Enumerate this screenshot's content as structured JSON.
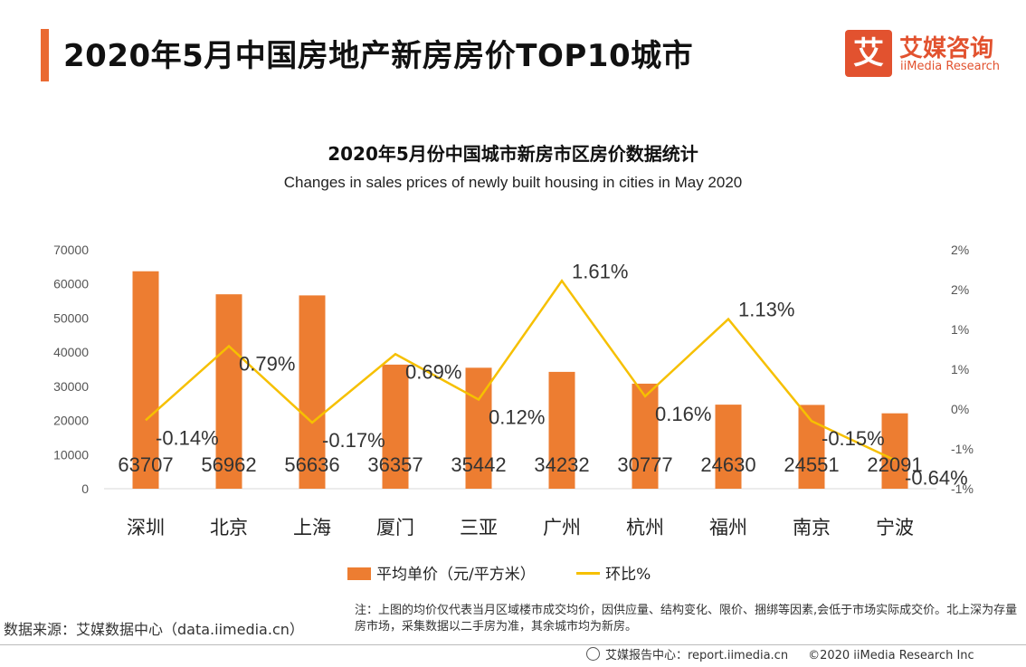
{
  "header": {
    "title": "2020年5月中国房地产新房房价TOP10城市",
    "logo_glyph": "艾",
    "logo_cn": "艾媒咨询",
    "logo_en": "iiMedia Research"
  },
  "chart_data": {
    "type": "bar",
    "title": "2020年5月份中国城市新房市区房价数据统计",
    "subtitle": "Changes in sales prices of newly built housing in cities in May 2020",
    "categories": [
      "深圳",
      "北京",
      "上海",
      "厦门",
      "三亚",
      "广州",
      "杭州",
      "福州",
      "南京",
      "宁波"
    ],
    "series": [
      {
        "name": "平均单价（元/平方米）",
        "type": "bar",
        "axis": "left",
        "color": "#ed7d31",
        "values": [
          63707,
          56962,
          56636,
          36357,
          35442,
          34232,
          30777,
          24630,
          24551,
          22091
        ],
        "labels": [
          "63707",
          "56962",
          "56636",
          "36357",
          "35442",
          "34232",
          "30777",
          "24630",
          "24551",
          "22091"
        ]
      },
      {
        "name": "环比%",
        "type": "line",
        "axis": "right",
        "color": "#f6c000",
        "values": [
          -0.14,
          0.79,
          -0.17,
          0.69,
          0.12,
          1.61,
          0.16,
          1.13,
          -0.15,
          -0.64
        ],
        "labels": [
          "-0.14%",
          "0.79%",
          "-0.17%",
          "0.69%",
          "0.12%",
          "1.61%",
          "0.16%",
          "1.13%",
          "-0.15%",
          "-0.64%"
        ]
      }
    ],
    "y_left": {
      "min": 0,
      "max": 70000,
      "ticks": [
        "0",
        "10000",
        "20000",
        "30000",
        "40000",
        "50000",
        "60000",
        "70000"
      ]
    },
    "y_right": {
      "min": -1,
      "max": 2,
      "ticks": [
        "-1%",
        "-1%",
        "0%",
        "1%",
        "1%",
        "2%",
        "2%"
      ]
    },
    "grid": false,
    "legend_position": "bottom"
  },
  "footer": {
    "source": "数据来源：艾媒数据中心（data.iimedia.cn）",
    "note": "注：上图的均价仅代表当月区域楼市成交均价，因供应量、结构变化、限价、捆绑等因素,会低于市场实际成交价。北上深为存量房市场，采集数据以二手房为准，其余城市均为新房。",
    "report_center": "艾媒报告中心：report.iimedia.cn",
    "copyright": "©2020  iiMedia Research  Inc"
  }
}
